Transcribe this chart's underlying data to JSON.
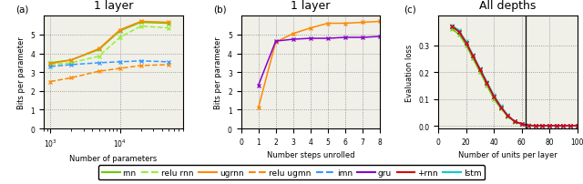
{
  "title_a": "1 layer",
  "title_b": "1 layer",
  "title_c": "All depths",
  "xlabel_a": "Number of parameters",
  "xlabel_b": "Number steps unrolled",
  "xlabel_c": "Number of units per layer",
  "ylabel_ab": "Bits per parameter",
  "ylabel_c": "Evaluation loss",
  "panel_a": {
    "rnn": {
      "x": [
        1000,
        2000,
        5000,
        10000,
        20000,
        50000
      ],
      "y": [
        3.5,
        3.65,
        4.2,
        5.2,
        5.65,
        5.6
      ],
      "color": "#66cc00",
      "ls": "solid",
      "marker": "x"
    },
    "relu_rnn": {
      "x": [
        1000,
        2000,
        5000,
        10000,
        20000,
        50000
      ],
      "y": [
        3.4,
        3.5,
        3.85,
        4.85,
        5.45,
        5.35
      ],
      "color": "#99ee33",
      "ls": "dashed",
      "marker": "x"
    },
    "ugrnn": {
      "x": [
        1000,
        2000,
        5000,
        10000,
        20000,
        50000
      ],
      "y": [
        3.45,
        3.65,
        4.25,
        5.25,
        5.7,
        5.65
      ],
      "color": "#ff8800",
      "ls": "solid",
      "marker": "x"
    },
    "relu_ugmn": {
      "x": [
        1000,
        2000,
        5000,
        10000,
        20000,
        50000
      ],
      "y": [
        2.5,
        2.7,
        3.05,
        3.2,
        3.35,
        3.4
      ],
      "color": "#ff8800",
      "ls": "dashed",
      "marker": "x"
    },
    "imn": {
      "x": [
        1000,
        2000,
        5000,
        10000,
        20000,
        50000
      ],
      "y": [
        3.3,
        3.4,
        3.5,
        3.55,
        3.6,
        3.55
      ],
      "color": "#3399ff",
      "ls": "dashed",
      "marker": "x"
    }
  },
  "panel_b": {
    "ugrnn": {
      "x": [
        1,
        2,
        3,
        4,
        5,
        6,
        7,
        8
      ],
      "y": [
        1.1,
        4.6,
        5.05,
        5.35,
        5.6,
        5.6,
        5.65,
        5.7
      ],
      "color": "#ff8800",
      "ls": "solid",
      "marker": "x"
    },
    "gru": {
      "x": [
        1,
        2,
        3,
        4,
        5,
        6,
        7,
        8
      ],
      "y": [
        2.3,
        4.65,
        4.75,
        4.8,
        4.8,
        4.85,
        4.85,
        4.9
      ],
      "color": "#8800cc",
      "ls": "solid",
      "marker": "x"
    }
  },
  "panel_c": {
    "lstm": {
      "x": [
        10,
        15,
        20,
        25,
        30,
        35,
        40,
        45,
        50,
        55,
        60,
        65,
        70,
        75,
        80,
        85,
        90,
        95,
        100
      ],
      "y": [
        0.375,
        0.355,
        0.315,
        0.265,
        0.215,
        0.165,
        0.115,
        0.075,
        0.04,
        0.018,
        0.008,
        0.003,
        0.001,
        0.001,
        0.001,
        0.001,
        0.001,
        0.001,
        0.001
      ],
      "color": "#00cccc",
      "ls": "solid",
      "marker": "x"
    },
    "relu_rnn": {
      "x": [
        10,
        15,
        20,
        25,
        30,
        35,
        40,
        45,
        50,
        55,
        60,
        65,
        70,
        75,
        80,
        85,
        90,
        95,
        100
      ],
      "y": [
        0.365,
        0.345,
        0.305,
        0.255,
        0.205,
        0.155,
        0.105,
        0.065,
        0.035,
        0.015,
        0.006,
        0.002,
        0.001,
        0.001,
        0.001,
        0.001,
        0.001,
        0.001,
        0.001
      ],
      "color": "#99ee33",
      "ls": "dashed",
      "marker": "x"
    },
    "ugrnn": {
      "x": [
        10,
        15,
        20,
        25,
        30,
        35,
        40,
        45,
        50,
        55,
        60,
        65,
        70,
        75,
        80,
        85,
        90,
        95,
        100
      ],
      "y": [
        0.37,
        0.35,
        0.31,
        0.26,
        0.21,
        0.16,
        0.11,
        0.07,
        0.038,
        0.016,
        0.007,
        0.002,
        0.001,
        0.001,
        0.001,
        0.001,
        0.001,
        0.001,
        0.001
      ],
      "color": "#ff8800",
      "ls": "solid",
      "marker": "x"
    },
    "relu_ugmn": {
      "x": [
        10,
        15,
        20,
        25,
        30,
        35,
        40,
        45,
        50,
        55,
        60,
        65,
        70,
        75,
        80,
        85,
        90,
        95,
        100
      ],
      "y": [
        0.37,
        0.35,
        0.31,
        0.26,
        0.21,
        0.16,
        0.11,
        0.07,
        0.038,
        0.016,
        0.007,
        0.002,
        0.001,
        0.001,
        0.001,
        0.001,
        0.001,
        0.001,
        0.001
      ],
      "color": "#ff8800",
      "ls": "dashed",
      "marker": "x"
    },
    "rnn": {
      "x": [
        10,
        15,
        20,
        25,
        30,
        35,
        40,
        45,
        50,
        55,
        60,
        65,
        70,
        75,
        80,
        85,
        90,
        95,
        100
      ],
      "y": [
        0.36,
        0.34,
        0.3,
        0.25,
        0.2,
        0.15,
        0.1,
        0.065,
        0.035,
        0.015,
        0.006,
        0.002,
        0.001,
        0.001,
        0.001,
        0.001,
        0.001,
        0.001,
        0.001
      ],
      "color": "#66cc00",
      "ls": "solid",
      "marker": "x"
    },
    "imn": {
      "x": [
        10,
        15,
        20,
        25,
        30,
        35,
        40,
        45,
        50,
        55,
        60,
        65,
        70,
        75,
        80,
        85,
        90,
        95,
        100
      ],
      "y": [
        0.37,
        0.35,
        0.31,
        0.26,
        0.21,
        0.16,
        0.11,
        0.07,
        0.038,
        0.016,
        0.007,
        0.002,
        0.001,
        0.001,
        0.001,
        0.001,
        0.001,
        0.001,
        0.001
      ],
      "color": "#3399ff",
      "ls": "dashed",
      "marker": "x"
    },
    "gru": {
      "x": [
        10,
        15,
        20,
        25,
        30,
        35,
        40,
        45,
        50,
        55,
        60,
        65,
        70,
        75,
        80,
        85,
        90,
        95,
        100
      ],
      "y": [
        0.37,
        0.35,
        0.31,
        0.26,
        0.21,
        0.16,
        0.11,
        0.07,
        0.038,
        0.016,
        0.007,
        0.002,
        0.001,
        0.001,
        0.001,
        0.001,
        0.001,
        0.001,
        0.001
      ],
      "color": "#8800cc",
      "ls": "solid",
      "marker": "x"
    },
    "plus_rnn": {
      "x": [
        10,
        15,
        20,
        25,
        30,
        35,
        40,
        45,
        50,
        55,
        60,
        65,
        70,
        75,
        80,
        85,
        90,
        95,
        100
      ],
      "y": [
        0.37,
        0.35,
        0.31,
        0.26,
        0.21,
        0.16,
        0.11,
        0.07,
        0.038,
        0.016,
        0.007,
        0.002,
        0.001,
        0.001,
        0.001,
        0.001,
        0.001,
        0.001,
        0.001
      ],
      "color": "#dd0000",
      "ls": "solid",
      "marker": "x"
    }
  },
  "legend_entries": [
    {
      "label": "rnn",
      "color": "#66cc00",
      "ls": "solid"
    },
    {
      "label": "relu rnn",
      "color": "#99ee33",
      "ls": "dashed"
    },
    {
      "label": "ugrnn",
      "color": "#ff8800",
      "ls": "solid"
    },
    {
      "label": "relu ugmn",
      "color": "#ff8800",
      "ls": "dashed"
    },
    {
      "label": "imn",
      "color": "#3399ff",
      "ls": "dashed"
    },
    {
      "label": "gru",
      "color": "#8800cc",
      "ls": "solid"
    },
    {
      "label": "+rnn",
      "color": "#dd0000",
      "ls": "solid"
    },
    {
      "label": "lstm",
      "color": "#00cccc",
      "ls": "solid"
    }
  ],
  "vline_c": 63,
  "bg_color": "#f0f0e8"
}
